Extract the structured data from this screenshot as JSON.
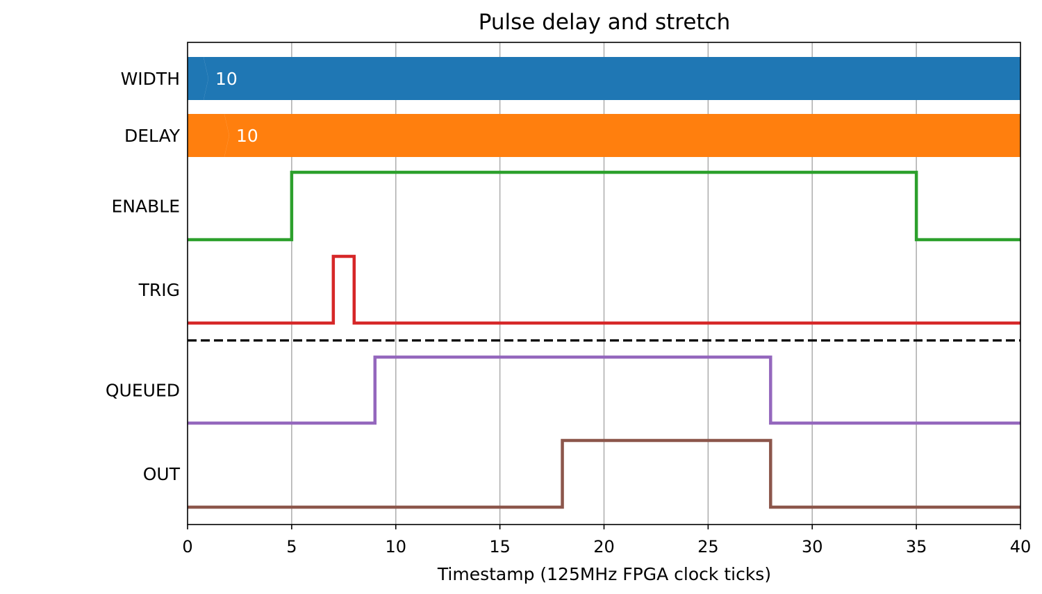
{
  "chart_data": {
    "type": "timing-diagram",
    "title": "Pulse delay and stretch",
    "xlabel": "Timestamp (125MHz FPGA clock ticks)",
    "ylabel": "",
    "xlim": [
      0,
      40
    ],
    "xticks": [
      0,
      5,
      10,
      15,
      20,
      25,
      30,
      35,
      40
    ],
    "grid": "vertical at x ticks",
    "separator": "dashed line between TRIG and QUEUED",
    "signals": [
      {
        "name": "WIDTH",
        "kind": "bus",
        "color": "#1f77b4",
        "segments": [
          {
            "start": 0,
            "end": 1,
            "label": ""
          },
          {
            "start": 1,
            "end": 40,
            "label": "10"
          }
        ]
      },
      {
        "name": "DELAY",
        "kind": "bus",
        "color": "#ff7f0e",
        "segments": [
          {
            "start": 0,
            "end": 2,
            "label": ""
          },
          {
            "start": 2,
            "end": 40,
            "label": "10"
          }
        ]
      },
      {
        "name": "ENABLE",
        "kind": "digital",
        "color": "#2ca02c",
        "steps": [
          [
            0,
            0
          ],
          [
            5,
            1
          ],
          [
            35,
            0
          ],
          [
            40,
            0
          ]
        ]
      },
      {
        "name": "TRIG",
        "kind": "digital",
        "color": "#d62728",
        "steps": [
          [
            0,
            0
          ],
          [
            7,
            1
          ],
          [
            8,
            0
          ],
          [
            40,
            0
          ]
        ]
      },
      {
        "name": "QUEUED",
        "kind": "digital",
        "color": "#9467bd",
        "steps": [
          [
            0,
            0
          ],
          [
            9,
            1
          ],
          [
            28,
            0
          ],
          [
            40,
            0
          ]
        ]
      },
      {
        "name": "OUT",
        "kind": "digital",
        "color": "#8c564b",
        "steps": [
          [
            0,
            0
          ],
          [
            18,
            1
          ],
          [
            28,
            0
          ],
          [
            40,
            0
          ]
        ]
      }
    ]
  }
}
